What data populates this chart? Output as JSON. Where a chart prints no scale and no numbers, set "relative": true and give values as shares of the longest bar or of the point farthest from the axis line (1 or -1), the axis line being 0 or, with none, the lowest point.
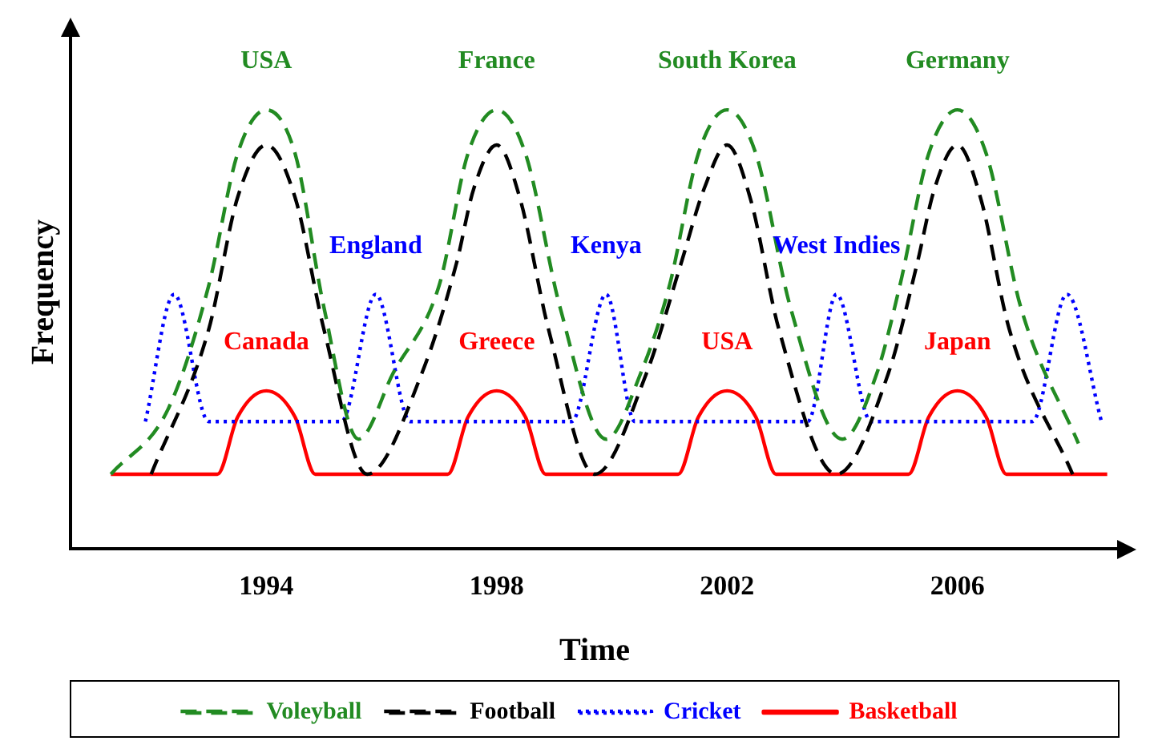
{
  "chart_data": {
    "type": "line",
    "relative": true,
    "xlabel": "Time",
    "ylabel": "Frequency",
    "xlim": [
      1990.6,
      2008.8
    ],
    "xticks": [
      1994,
      1998,
      2002,
      2006
    ],
    "tick_labels": "x",
    "grid": false,
    "legend": "bottom",
    "marker": "none",
    "series": [
      {
        "name": "Voleyball",
        "color": "#228b22",
        "line_style": "dashed",
        "x": [
          1991.3,
          1992.3,
          1993,
          1993.5,
          1994,
          1994.5,
          1995,
          1995.6,
          1996.2,
          1997,
          1997.5,
          1998,
          1998.5,
          1999.1,
          1999.9,
          2000.5,
          2001,
          2001.5,
          2002,
          2002.5,
          2003.1,
          2004,
          2004.6,
          2005,
          2005.5,
          2006,
          2006.5,
          2007.1,
          2008.1
        ],
        "values": [
          0.17,
          0.32,
          0.6,
          0.9,
          1,
          0.9,
          0.55,
          0.25,
          0.4,
          0.6,
          0.9,
          1,
          0.9,
          0.55,
          0.25,
          0.4,
          0.6,
          0.9,
          1,
          0.9,
          0.55,
          0.25,
          0.4,
          0.6,
          0.9,
          1,
          0.9,
          0.55,
          0.24
        ]
      },
      {
        "name": "Football",
        "color": "#000000",
        "line_style": "dashed",
        "x": [
          1992,
          1993,
          1993.5,
          1994,
          1994.5,
          1995,
          1995.75,
          1996.7,
          1997.3,
          1997.6,
          1998,
          1998.4,
          1998.9,
          1999.7,
          2000.6,
          2001.2,
          2001.6,
          2002,
          2002.4,
          2002.9,
          2003.9,
          2004.8,
          2005.3,
          2005.6,
          2006,
          2006.4,
          2006.9,
          2008
        ],
        "values": [
          0.17,
          0.5,
          0.8,
          0.92,
          0.8,
          0.5,
          0.17,
          0.4,
          0.65,
          0.82,
          0.92,
          0.8,
          0.5,
          0.17,
          0.4,
          0.65,
          0.82,
          0.92,
          0.8,
          0.5,
          0.17,
          0.4,
          0.65,
          0.82,
          0.92,
          0.8,
          0.5,
          0.17
        ]
      },
      {
        "name": "Cricket",
        "color": "#0000ff",
        "line_style": "dotted",
        "x": [
          1991.9,
          1992.4,
          1993,
          1995.3,
          1995.9,
          1996.5,
          1999.3,
          1999.9,
          2000.4,
          2003.4,
          2003.9,
          2004.5,
          2007.3,
          2007.9,
          2008.5
        ],
        "values": [
          0.29,
          0.58,
          0.29,
          0.29,
          0.58,
          0.29,
          0.29,
          0.58,
          0.29,
          0.29,
          0.58,
          0.29,
          0.29,
          0.58,
          0.29
        ]
      },
      {
        "name": "Basketball",
        "color": "#ff0000",
        "line_style": "solid",
        "x": [
          1991.3,
          1993.15,
          1993.5,
          1994,
          1994.5,
          1994.85,
          1997.15,
          1997.5,
          1998,
          1998.5,
          1998.85,
          2001.15,
          2001.5,
          2002,
          2002.5,
          2002.85,
          2005.15,
          2005.5,
          2006,
          2006.5,
          2006.85,
          2008.6
        ],
        "values": [
          0.17,
          0.17,
          0.3,
          0.36,
          0.3,
          0.17,
          0.17,
          0.3,
          0.36,
          0.3,
          0.17,
          0.17,
          0.3,
          0.36,
          0.3,
          0.17,
          0.17,
          0.3,
          0.36,
          0.3,
          0.17,
          0.17
        ]
      }
    ],
    "annotations": [
      {
        "text": "USA",
        "x": 1994,
        "y": 1
      },
      {
        "text": "France",
        "x": 1998,
        "y": 1
      },
      {
        "text": "South Korea",
        "x": 2002,
        "y": 1
      },
      {
        "text": "Germany",
        "x": 2006,
        "y": 1
      },
      {
        "text": "England",
        "x": 1995.9,
        "y": 0.58
      },
      {
        "text": "Kenya",
        "x": 1999.9,
        "y": 0.58
      },
      {
        "text": "West Indies",
        "x": 2003.9,
        "y": 0.58
      },
      {
        "text": "Canada",
        "x": 1994,
        "y": 0.36
      },
      {
        "text": "Greece",
        "x": 1998,
        "y": 0.36
      },
      {
        "text": "USA",
        "x": 2002,
        "y": 0.36
      },
      {
        "text": "Japan",
        "x": 2006,
        "y": 0.36
      }
    ]
  }
}
